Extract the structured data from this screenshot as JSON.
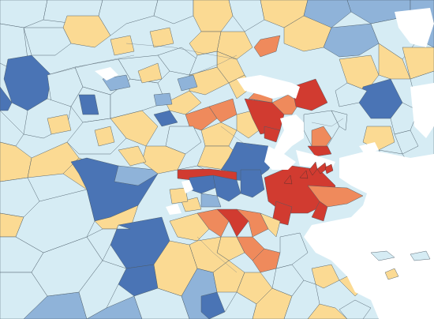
{
  "map": {
    "palette": {
      "dark_blue": "#4a74b5",
      "mid_blue": "#8fb3d9",
      "light_blue": "#d6ecf4",
      "pale_yellow": "#fbda93",
      "orange": "#ef8a5c",
      "red": "#d13b30",
      "water": "#ffffff",
      "border": "#4a5a66"
    }
  }
}
